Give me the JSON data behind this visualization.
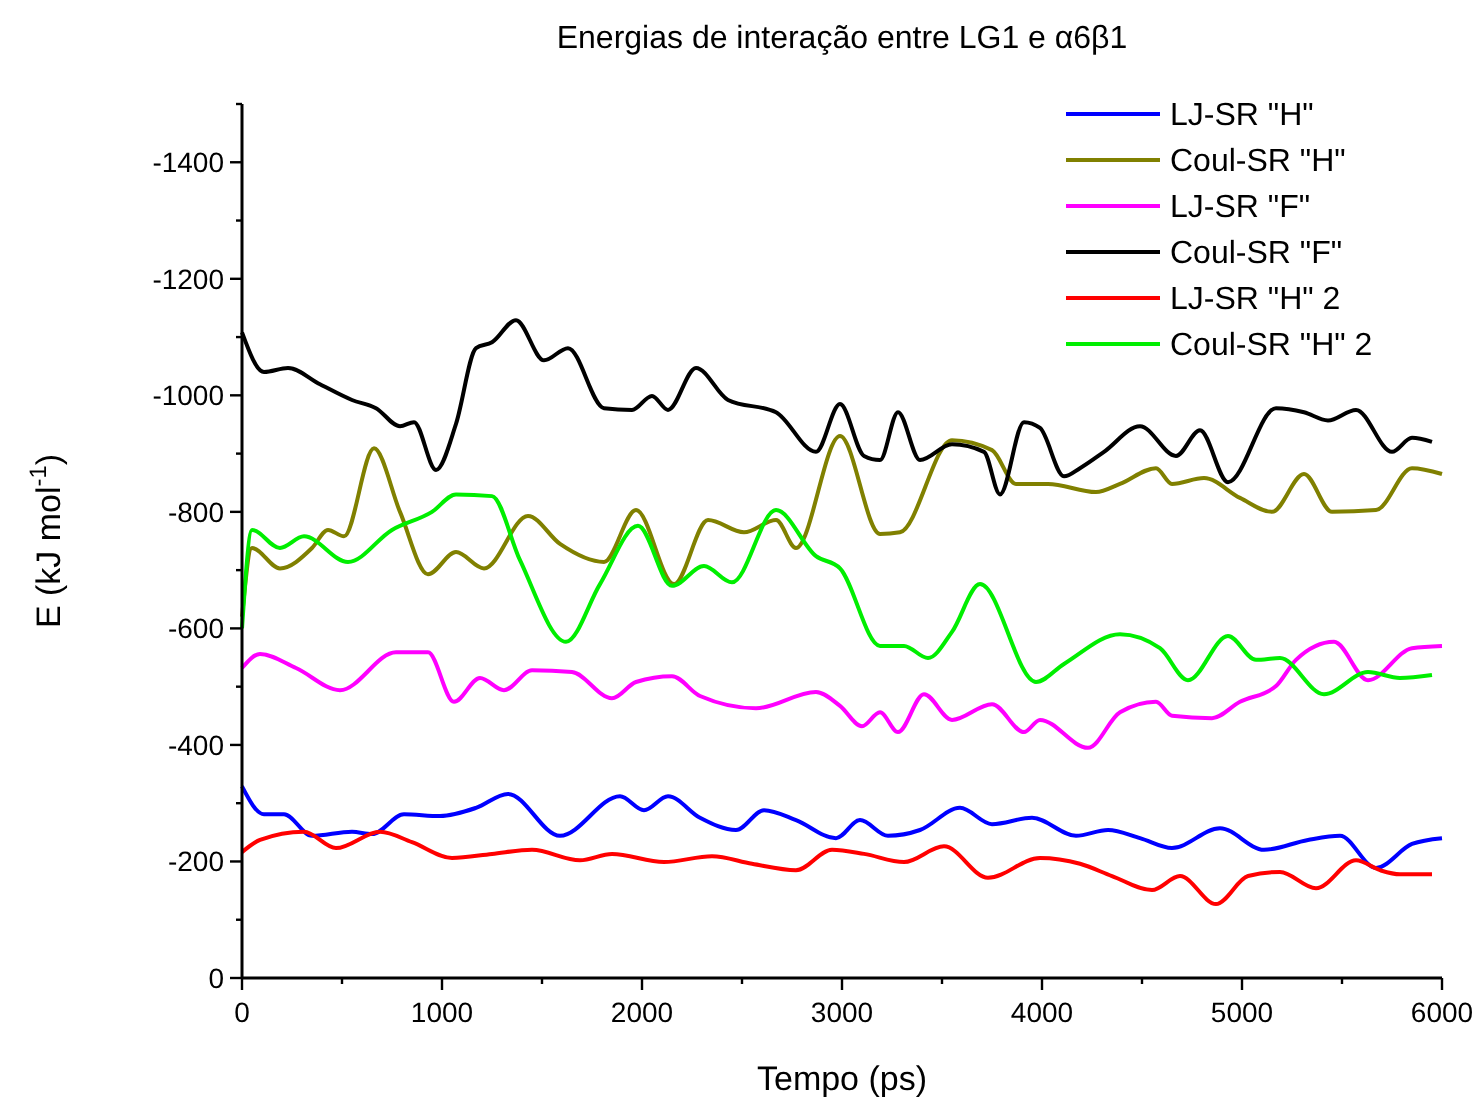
{
  "chart_data": {
    "type": "line",
    "title": "Energias de interação entre LG1 e α6β1",
    "xlabel": "Tempo (ps)",
    "ylabel": "E (kJ mol$^{-1}$)",
    "xlim": [
      0,
      6000
    ],
    "xticks": [
      0,
      {
        "value": 500,
        "label": null
      },
      1000,
      {
        "value": 1500,
        "label": null
      },
      2000,
      {
        "value": 2500,
        "label": null
      },
      3000,
      {
        "value": 3500,
        "label": null
      },
      4000,
      {
        "value": 4500,
        "label": null
      },
      5000,
      {
        "value": 5500,
        "label": null
      },
      6000
    ],
    "ylim": [
      0,
      -1500
    ],
    "yticks": [
      0,
      {
        "value": -100,
        "label": null
      },
      -200,
      {
        "value": -300,
        "label": null
      },
      -400,
      {
        "value": -500,
        "label": null
      },
      -600,
      {
        "value": -700,
        "label": null
      },
      -800,
      {
        "value": -900,
        "label": null
      },
      -1000,
      {
        "value": -1100,
        "label": null
      },
      -1200,
      {
        "value": -1300,
        "label": null
      },
      -1400,
      {
        "value": -1500,
        "label": null
      }
    ],
    "grid": false,
    "legend": "top right",
    "marker": "none",
    "line_style": "solid",
    "series": [
      {
        "name": "LJ-SR \"H\"",
        "color": "#0000ff",
        "x": [
          0,
          110,
          210,
          350,
          550,
          650,
          810,
          990,
          1170,
          1330,
          1590,
          1890,
          2010,
          2130,
          2290,
          2470,
          2610,
          2770,
          2970,
          3090,
          3230,
          3390,
          3590,
          3750,
          3950,
          4170,
          4330,
          4490,
          4650,
          4890,
          5110,
          5330,
          5490,
          5670,
          5850,
          6000
        ],
        "values": [
          -329,
          -281,
          -281,
          -244,
          -251,
          -247,
          -281,
          -278,
          -292,
          -316,
          -244,
          -312,
          -288,
          -312,
          -275,
          -254,
          -288,
          -271,
          -240,
          -271,
          -244,
          -254,
          -292,
          -264,
          -275,
          -244,
          -254,
          -240,
          -223,
          -257,
          -220,
          -237,
          -244,
          -189,
          -230,
          -240
        ]
      },
      {
        "name": "Coul-SR \"H\"",
        "color": "#808000",
        "x": [
          0,
          50,
          190,
          350,
          430,
          510,
          660,
          790,
          930,
          1070,
          1210,
          1430,
          1590,
          1810,
          1970,
          2160,
          2330,
          2510,
          2670,
          2770,
          2990,
          3190,
          3290,
          3550,
          3750,
          3870,
          4030,
          4270,
          4390,
          4570,
          4650,
          4810,
          4990,
          5150,
          5310,
          5450,
          5670,
          5850,
          6000
        ],
        "values": [
          -620,
          -738,
          -703,
          -738,
          -769,
          -758,
          -909,
          -800,
          -693,
          -731,
          -703,
          -793,
          -745,
          -714,
          -803,
          -676,
          -786,
          -765,
          -786,
          -738,
          -930,
          -762,
          -765,
          -923,
          -906,
          -848,
          -848,
          -834,
          -848,
          -875,
          -848,
          -858,
          -824,
          -800,
          -865,
          -800,
          -803,
          -875,
          -865
        ]
      },
      {
        "name": "LJ-SR \"F\"",
        "color": "#ff00ff",
        "x": [
          0,
          90,
          270,
          490,
          770,
          930,
          1060,
          1190,
          1310,
          1450,
          1650,
          1850,
          1970,
          2150,
          2290,
          2570,
          2870,
          2990,
          3100,
          3190,
          3280,
          3410,
          3550,
          3750,
          3910,
          3990,
          4230,
          4390,
          4570,
          4650,
          4850,
          4990,
          5170,
          5270,
          5460,
          5630,
          5850,
          6000
        ],
        "values": [
          -532,
          -556,
          -532,
          -494,
          -559,
          -559,
          -474,
          -515,
          -494,
          -528,
          -525,
          -480,
          -508,
          -518,
          -484,
          -463,
          -491,
          -467,
          -432,
          -456,
          -422,
          -487,
          -443,
          -470,
          -422,
          -443,
          -395,
          -456,
          -474,
          -450,
          -446,
          -474,
          -501,
          -546,
          -577,
          -511,
          -566,
          -570
        ]
      },
      {
        "name": "Coul-SR \"F\"",
        "color": "#000000",
        "x": [
          0,
          110,
          230,
          390,
          550,
          670,
          790,
          860,
          970,
          1070,
          1170,
          1250,
          1370,
          1510,
          1630,
          1810,
          1950,
          2050,
          2130,
          2270,
          2430,
          2670,
          2870,
          2990,
          3110,
          3190,
          3280,
          3390,
          3550,
          3710,
          3790,
          3910,
          3990,
          4110,
          4190,
          4310,
          4490,
          4670,
          4790,
          4930,
          5170,
          5310,
          5430,
          5570,
          5750,
          5850,
          5950
        ],
        "values": [
          -1108,
          -1040,
          -1047,
          -1019,
          -992,
          -978,
          -947,
          -954,
          -872,
          -951,
          -1081,
          -1091,
          -1129,
          -1060,
          -1081,
          -978,
          -975,
          -999,
          -975,
          -1047,
          -992,
          -971,
          -903,
          -985,
          -896,
          -889,
          -971,
          -889,
          -916,
          -903,
          -830,
          -954,
          -944,
          -861,
          -875,
          -903,
          -947,
          -896,
          -940,
          -851,
          -978,
          -971,
          -957,
          -975,
          -903,
          -927,
          -920
        ]
      },
      {
        "name": "LJ-SR \"H\" 2",
        "color": "#ff0000",
        "x": [
          0,
          90,
          310,
          470,
          690,
          850,
          1050,
          1250,
          1450,
          1690,
          1850,
          2110,
          2350,
          2550,
          2770,
          2950,
          3110,
          3310,
          3510,
          3730,
          3990,
          4190,
          4350,
          4550,
          4690,
          4870,
          5030,
          5190,
          5370,
          5570,
          5690,
          5790,
          5950
        ],
        "values": [
          -216,
          -237,
          -251,
          -223,
          -251,
          -233,
          -206,
          -213,
          -220,
          -202,
          -213,
          -199,
          -209,
          -196,
          -185,
          -220,
          -213,
          -199,
          -226,
          -172,
          -206,
          -196,
          -175,
          -151,
          -175,
          -127,
          -175,
          -182,
          -154,
          -202,
          -185,
          -178,
          -178
        ]
      },
      {
        "name": "Coul-SR \"H\" 2",
        "color": "#00ee00",
        "x": [
          0,
          50,
          190,
          310,
          530,
          750,
          950,
          1070,
          1250,
          1390,
          1620,
          1790,
          1980,
          2150,
          2310,
          2450,
          2670,
          2870,
          2990,
          3190,
          3310,
          3430,
          3550,
          3690,
          3970,
          4110,
          4390,
          4590,
          4730,
          4930,
          5070,
          5190,
          5410,
          5630,
          5790,
          5950
        ],
        "values": [
          -600,
          -769,
          -738,
          -758,
          -714,
          -769,
          -800,
          -830,
          -827,
          -717,
          -577,
          -676,
          -776,
          -673,
          -707,
          -679,
          -803,
          -724,
          -703,
          -570,
          -570,
          -549,
          -594,
          -676,
          -508,
          -539,
          -590,
          -566,
          -511,
          -587,
          -546,
          -549,
          -487,
          -525,
          -515,
          -520
        ]
      }
    ]
  }
}
